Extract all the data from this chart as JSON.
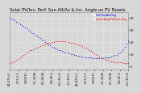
{
  "title": "Solar PV/Inv. Perf. Sun Alt/Az & Inc. Angle on PV Panels",
  "legend_label_blue": "HOY-SunAlt-Deg",
  "legend_label_red": "SunIncAng-PVPanel-Deg",
  "legend_color_blue": "blue",
  "legend_color_red": "red",
  "bg_color": "#d8d8d8",
  "grid_color": "#ffffff",
  "title_fontsize": 3.8,
  "tick_fontsize": 2.5,
  "ylim": [
    -5,
    90
  ],
  "ytick_vals": [
    0,
    20,
    40,
    60,
    80
  ],
  "ytick_labels": [
    "0",
    "20",
    "40",
    "60",
    "80"
  ],
  "blue_x": [
    0,
    1,
    2,
    3,
    4,
    5,
    6,
    7,
    8,
    9,
    10,
    11,
    12,
    13,
    14,
    15,
    16,
    17,
    18,
    19,
    20,
    21,
    22,
    23,
    24,
    25,
    26,
    27,
    28,
    29,
    30,
    31,
    32,
    33,
    34,
    35,
    36,
    37,
    38,
    39,
    40,
    41,
    42,
    43,
    44,
    45,
    46,
    47,
    48,
    49,
    50,
    51,
    52,
    53,
    54,
    55,
    56,
    57,
    58,
    59,
    60,
    61,
    62,
    63,
    64,
    65,
    66,
    67,
    68,
    69,
    70
  ],
  "blue_y": [
    80,
    79,
    77,
    76,
    74,
    72,
    70,
    68,
    66,
    64,
    62,
    60,
    58,
    56,
    54,
    52,
    50,
    48,
    46,
    44,
    42,
    40,
    38,
    36,
    34,
    32,
    31,
    30,
    28,
    27,
    26,
    25,
    24,
    23,
    22,
    21,
    20,
    20,
    19,
    18,
    17,
    17,
    16,
    16,
    15,
    15,
    14,
    14,
    14,
    13,
    13,
    13,
    13,
    13,
    13,
    13,
    14,
    14,
    15,
    15,
    16,
    17,
    18,
    19,
    21,
    23,
    25,
    28,
    32,
    37,
    43
  ],
  "red_x": [
    0,
    1,
    2,
    3,
    4,
    5,
    6,
    7,
    8,
    9,
    10,
    11,
    12,
    13,
    14,
    15,
    16,
    17,
    18,
    19,
    20,
    21,
    22,
    23,
    24,
    25,
    26,
    27,
    28,
    29,
    30,
    31,
    32,
    33,
    34,
    35,
    36,
    37,
    38,
    39,
    40,
    41,
    42,
    43,
    44,
    45,
    46,
    47,
    48,
    49,
    50,
    51,
    52,
    53,
    54,
    55,
    56,
    57,
    58,
    59,
    60,
    61,
    62,
    63,
    64,
    65,
    66,
    67,
    68,
    69,
    70
  ],
  "red_y": [
    5,
    6,
    7,
    8,
    10,
    12,
    14,
    16,
    18,
    20,
    22,
    24,
    26,
    27,
    28,
    30,
    31,
    32,
    33,
    34,
    35,
    36,
    37,
    38,
    39,
    40,
    40,
    41,
    41,
    41,
    41,
    41,
    41,
    41,
    40,
    40,
    39,
    38,
    38,
    37,
    36,
    35,
    34,
    33,
    31,
    30,
    28,
    27,
    25,
    23,
    21,
    20,
    18,
    16,
    15,
    13,
    12,
    11,
    10,
    9,
    8,
    8,
    7,
    7,
    6,
    6,
    6,
    5,
    5,
    5,
    5
  ],
  "n_xticks": 15,
  "xtick_labels": [
    "41-670=1",
    "0-75-1.1",
    "0-83171",
    "1-1-2436",
    "0-1-2636",
    "0-6-3P-3",
    "0-1-35+9",
    "1-1-3S+5",
    "41-670=1",
    "0-75-1.1",
    "0-83171",
    "1-1-2436",
    "0-1-2636",
    "0-6-3P-3",
    "0-1-35+9"
  ]
}
